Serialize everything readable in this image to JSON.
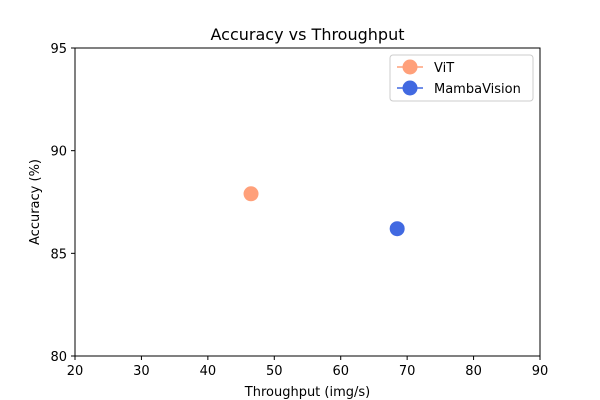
{
  "chart_data": {
    "type": "scatter",
    "title": "Accuracy vs Throughput",
    "xlabel": "Throughput (img/s)",
    "ylabel": "Accuracy (%)",
    "xlim": [
      20,
      90
    ],
    "ylim": [
      80,
      95
    ],
    "xticks": [
      20,
      30,
      40,
      50,
      60,
      70,
      80,
      90
    ],
    "yticks": [
      80,
      85,
      90,
      95
    ],
    "grid": false,
    "legend_position": "top-right",
    "series": [
      {
        "name": "ViT",
        "color": "#FFA07A",
        "points": [
          {
            "x": 46.5,
            "y": 87.9
          }
        ]
      },
      {
        "name": "MambaVision",
        "color": "#4169E1",
        "points": [
          {
            "x": 68.5,
            "y": 86.2
          }
        ]
      }
    ]
  }
}
